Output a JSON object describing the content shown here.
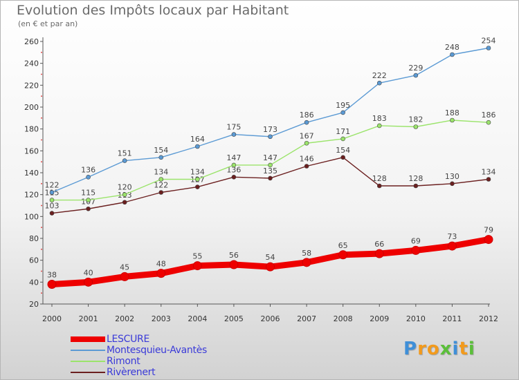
{
  "title": "Evolution des Impôts locaux par Habitant",
  "subtitle": "(en € et par an)",
  "brand": {
    "letters": [
      "P",
      "r",
      "o",
      "x",
      "i",
      "t",
      "i"
    ],
    "colors": [
      "#3f8fd8",
      "#f29a1c",
      "#f29a1c",
      "#5bbf3a",
      "#3f8fd8",
      "#f29a1c",
      "#5bbf3a"
    ]
  },
  "chart_data": {
    "type": "line",
    "title": "Evolution des Impôts locaux par Habitant",
    "subtitle": "(en € et par an)",
    "x": [
      "2000",
      "2001",
      "2002",
      "2003",
      "2004",
      "2005",
      "2006",
      "2007",
      "2008",
      "2009",
      "2010",
      "2011",
      "2012"
    ],
    "ylim": [
      20,
      260
    ],
    "yticks": [
      20,
      40,
      60,
      80,
      100,
      120,
      140,
      160,
      180,
      200,
      220,
      240,
      260
    ],
    "grid": false,
    "legend": "bottom-left",
    "series": [
      {
        "name": "LESCURE",
        "color": "#ee0000",
        "emphasis": true,
        "values": [
          38,
          40,
          45,
          48,
          55,
          56,
          54,
          58,
          65,
          66,
          69,
          73,
          79
        ]
      },
      {
        "name": "Montesquieu-Avantès",
        "color": "#5b9ad4",
        "values": [
          122,
          136,
          151,
          154,
          164,
          175,
          173,
          186,
          195,
          222,
          229,
          248,
          254
        ]
      },
      {
        "name": "Rimont",
        "color": "#9be46b",
        "values": [
          115,
          115,
          120,
          134,
          134,
          147,
          147,
          167,
          171,
          183,
          182,
          188,
          186
        ]
      },
      {
        "name": "Rivèrenert",
        "color": "#6b1f1f",
        "values": [
          103,
          107,
          113,
          122,
          127,
          136,
          135,
          146,
          154,
          128,
          128,
          130,
          134
        ]
      }
    ]
  }
}
